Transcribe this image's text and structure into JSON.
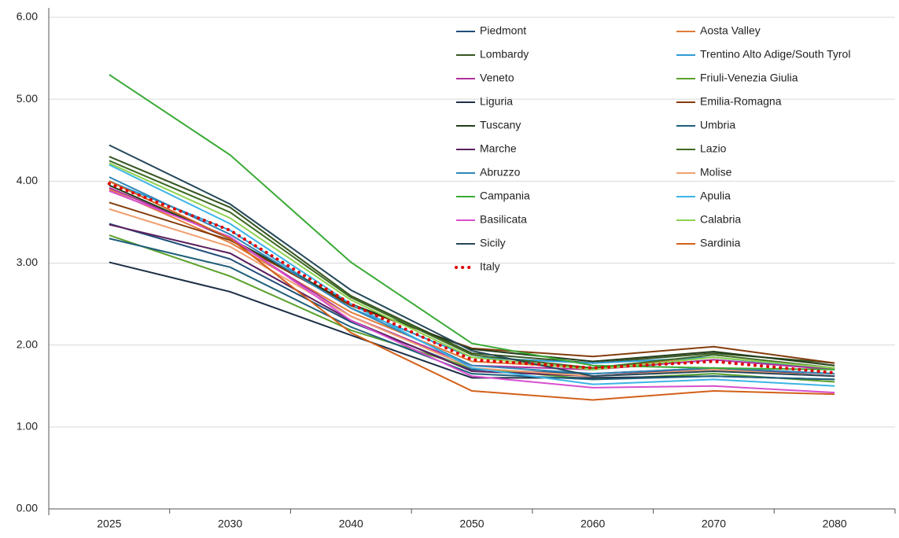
{
  "chart_data": {
    "type": "line",
    "categories": [
      "2025",
      "2030",
      "2040",
      "2050",
      "2060",
      "2070",
      "2080"
    ],
    "ylim": [
      0,
      6
    ],
    "yticks": [
      {
        "value": 0,
        "label": "0.00"
      },
      {
        "value": 1,
        "label": "1.00"
      },
      {
        "value": 2,
        "label": "2.00"
      },
      {
        "value": 3,
        "label": "3.00"
      },
      {
        "value": 4,
        "label": "4.00"
      },
      {
        "value": 5,
        "label": "5.00"
      },
      {
        "value": 6,
        "label": "6.00"
      }
    ],
    "grid": true,
    "series": [
      {
        "name": "Piedmont",
        "color": "#1f4e79",
        "values": [
          3.48,
          3.05,
          2.28,
          1.7,
          1.65,
          1.72,
          1.65
        ]
      },
      {
        "name": "Aosta Valley",
        "color": "#e07b39",
        "values": [
          3.9,
          3.25,
          2.4,
          1.8,
          1.72,
          1.85,
          1.7
        ]
      },
      {
        "name": "Lombardy",
        "color": "#375623",
        "values": [
          4.3,
          3.68,
          2.6,
          1.9,
          1.78,
          1.9,
          1.78
        ]
      },
      {
        "name": "Trentino Alto Adige/South Tyrol",
        "color": "#2e9bd6",
        "values": [
          4.0,
          3.4,
          2.45,
          1.85,
          1.78,
          1.85,
          1.7
        ]
      },
      {
        "name": "Veneto",
        "color": "#b0309a",
        "values": [
          3.92,
          3.3,
          2.35,
          1.75,
          1.7,
          1.82,
          1.7
        ]
      },
      {
        "name": "Friuli-Venezia Giulia",
        "color": "#5aa02c",
        "values": [
          3.34,
          2.84,
          2.18,
          1.72,
          1.58,
          1.65,
          1.55
        ]
      },
      {
        "name": "Liguria",
        "color": "#1c2f45",
        "values": [
          3.01,
          2.65,
          2.12,
          1.6,
          1.6,
          1.62,
          1.58
        ]
      },
      {
        "name": "Emilia-Romagna",
        "color": "#843c0c",
        "values": [
          3.74,
          3.28,
          2.48,
          1.96,
          1.86,
          1.98,
          1.78
        ]
      },
      {
        "name": "Tuscany",
        "color": "#233d1a",
        "values": [
          3.95,
          3.3,
          2.5,
          1.95,
          1.8,
          1.92,
          1.75
        ]
      },
      {
        "name": "Umbria",
        "color": "#1f5f7a",
        "values": [
          3.3,
          2.95,
          2.22,
          1.65,
          1.58,
          1.62,
          1.58
        ]
      },
      {
        "name": "Marche",
        "color": "#5b1f5e",
        "values": [
          3.47,
          3.12,
          2.3,
          1.68,
          1.62,
          1.72,
          1.62
        ]
      },
      {
        "name": "Lazio",
        "color": "#3f6b25",
        "values": [
          4.25,
          3.62,
          2.58,
          1.88,
          1.72,
          1.88,
          1.72
        ]
      },
      {
        "name": "Abruzzo",
        "color": "#2f86b8",
        "values": [
          4.05,
          3.35,
          2.45,
          1.75,
          1.65,
          1.72,
          1.65
        ]
      },
      {
        "name": "Molise",
        "color": "#f0a070",
        "values": [
          3.66,
          3.2,
          2.35,
          1.72,
          1.62,
          1.7,
          1.62
        ]
      },
      {
        "name": "Campania",
        "color": "#3aaa35",
        "values": [
          5.3,
          4.32,
          3.01,
          2.02,
          1.75,
          1.72,
          1.7
        ]
      },
      {
        "name": "Apulia",
        "color": "#3cb4e6",
        "values": [
          4.2,
          3.48,
          2.5,
          1.72,
          1.52,
          1.58,
          1.5
        ]
      },
      {
        "name": "Basilicata",
        "color": "#d84fcf",
        "values": [
          3.88,
          3.32,
          2.3,
          1.62,
          1.48,
          1.5,
          1.42
        ]
      },
      {
        "name": "Calabria",
        "color": "#8fd14f",
        "values": [
          4.22,
          3.55,
          2.55,
          1.85,
          1.7,
          1.85,
          1.72
        ]
      },
      {
        "name": "Sicily",
        "color": "#24485a",
        "values": [
          4.44,
          3.72,
          2.67,
          1.93,
          1.62,
          1.68,
          1.62
        ]
      },
      {
        "name": "Sardinia",
        "color": "#d2601a",
        "values": [
          4.0,
          3.3,
          2.15,
          1.44,
          1.33,
          1.44,
          1.4
        ]
      },
      {
        "name": "Italy",
        "color": "#e00000",
        "dash": "dotted",
        "values": [
          3.97,
          3.4,
          2.5,
          1.82,
          1.72,
          1.8,
          1.66
        ]
      }
    ]
  }
}
